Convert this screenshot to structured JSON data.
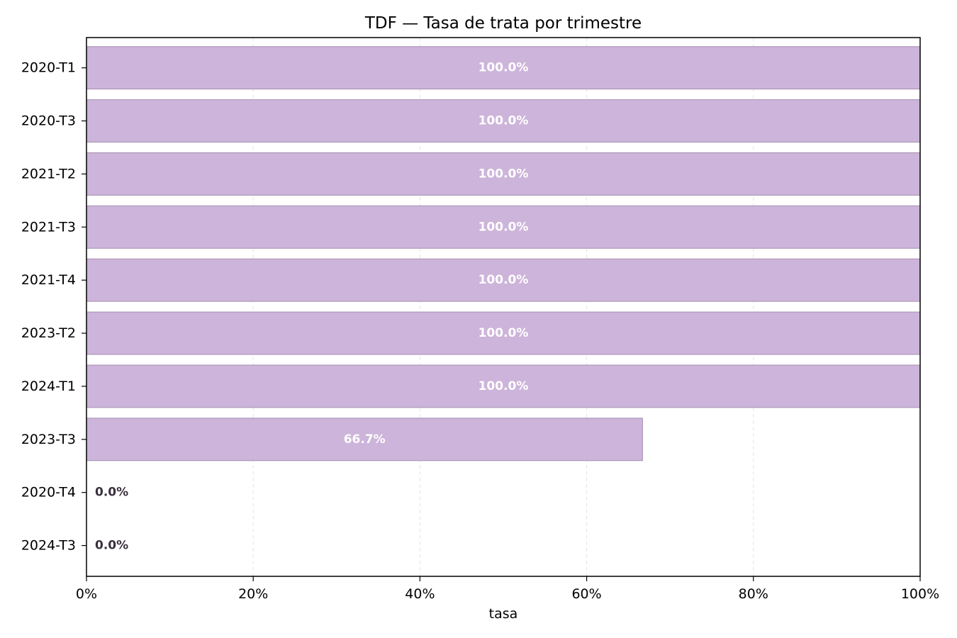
{
  "chart_data": {
    "type": "bar",
    "orientation": "horizontal",
    "title": "TDF — Tasa de trata por trimestre",
    "xlabel": "tasa",
    "ylabel": "",
    "categories": [
      "2020-T1",
      "2020-T3",
      "2021-T2",
      "2021-T3",
      "2021-T4",
      "2023-T2",
      "2024-T1",
      "2023-T3",
      "2020-T4",
      "2024-T3"
    ],
    "values": [
      100.0,
      100.0,
      100.0,
      100.0,
      100.0,
      100.0,
      100.0,
      66.7,
      0.0,
      0.0
    ],
    "data_labels": [
      "100.0%",
      "100.0%",
      "100.0%",
      "100.0%",
      "100.0%",
      "100.0%",
      "100.0%",
      "66.7%",
      "0.0%",
      "0.0%"
    ],
    "xlim": [
      0,
      100
    ],
    "xticks": [
      0,
      20,
      40,
      60,
      80,
      100
    ],
    "xtick_labels": [
      "0%",
      "20%",
      "40%",
      "60%",
      "80%",
      "100%"
    ],
    "grid": "x-dashed",
    "colors": {
      "bar_fill": "#cdb4da",
      "bar_edge": "#a48fb0",
      "label_inside": "#ffffff",
      "label_outside": "#3a2f3d",
      "grid": "#e3e3e3"
    }
  }
}
